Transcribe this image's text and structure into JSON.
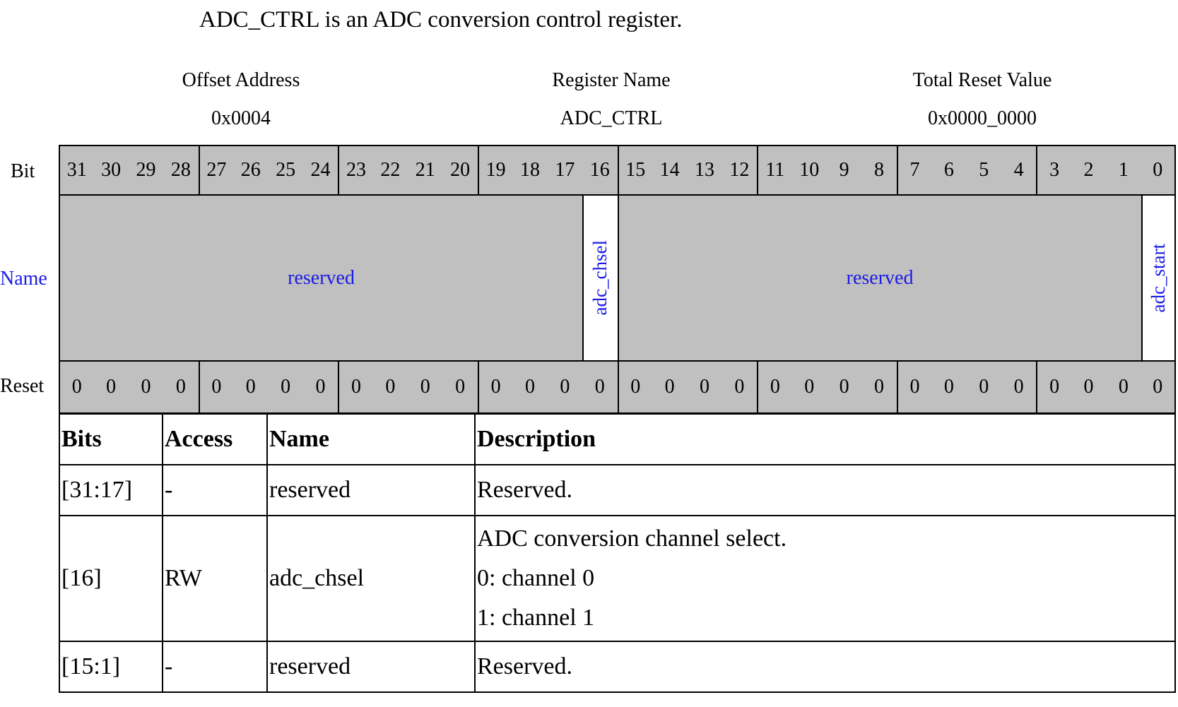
{
  "intro": "ADC_CTRL is an ADC conversion control register.",
  "header": {
    "offset_label": "Offset Address",
    "offset_value": "0x0004",
    "name_label": "Register Name",
    "name_value": "ADC_CTRL",
    "reset_label": "Total Reset Value",
    "reset_value": "0x0000_0000"
  },
  "row_labels": {
    "bit": "Bit",
    "name": "Name",
    "reset": "Reset"
  },
  "bits": [
    "31",
    "30",
    "29",
    "28",
    "27",
    "26",
    "25",
    "24",
    "23",
    "22",
    "21",
    "20",
    "19",
    "18",
    "17",
    "16",
    "15",
    "14",
    "13",
    "12",
    "11",
    "10",
    "9",
    "8",
    "7",
    "6",
    "5",
    "4",
    "3",
    "2",
    "1",
    "0"
  ],
  "fields": [
    {
      "msb": 31,
      "lsb": 17,
      "name": "reserved",
      "reserved": true
    },
    {
      "msb": 16,
      "lsb": 16,
      "name": "adc_chsel",
      "reserved": false
    },
    {
      "msb": 15,
      "lsb": 1,
      "name": "reserved",
      "reserved": true
    },
    {
      "msb": 0,
      "lsb": 0,
      "name": "adc_start",
      "reserved": false
    }
  ],
  "reset_bits": [
    "0",
    "0",
    "0",
    "0",
    "0",
    "0",
    "0",
    "0",
    "0",
    "0",
    "0",
    "0",
    "0",
    "0",
    "0",
    "0",
    "0",
    "0",
    "0",
    "0",
    "0",
    "0",
    "0",
    "0",
    "0",
    "0",
    "0",
    "0",
    "0",
    "0",
    "0",
    "0"
  ],
  "table": {
    "headers": [
      "Bits",
      "Access",
      "Name",
      "Description"
    ],
    "rows": [
      {
        "bits": "[31:17]",
        "access": "-",
        "name": "reserved",
        "description": [
          "Reserved."
        ]
      },
      {
        "bits": "[16]",
        "access": "RW",
        "name": "adc_chsel",
        "description": [
          "ADC conversion channel select.",
          "0: channel 0",
          "1: channel 1"
        ]
      },
      {
        "bits": "[15:1]",
        "access": "-",
        "name": "reserved",
        "description": [
          "Reserved."
        ]
      }
    ]
  },
  "colors": {
    "reserved_fill": "#c0c0c0",
    "name_text": "#1a1ae6",
    "border": "#000000"
  }
}
